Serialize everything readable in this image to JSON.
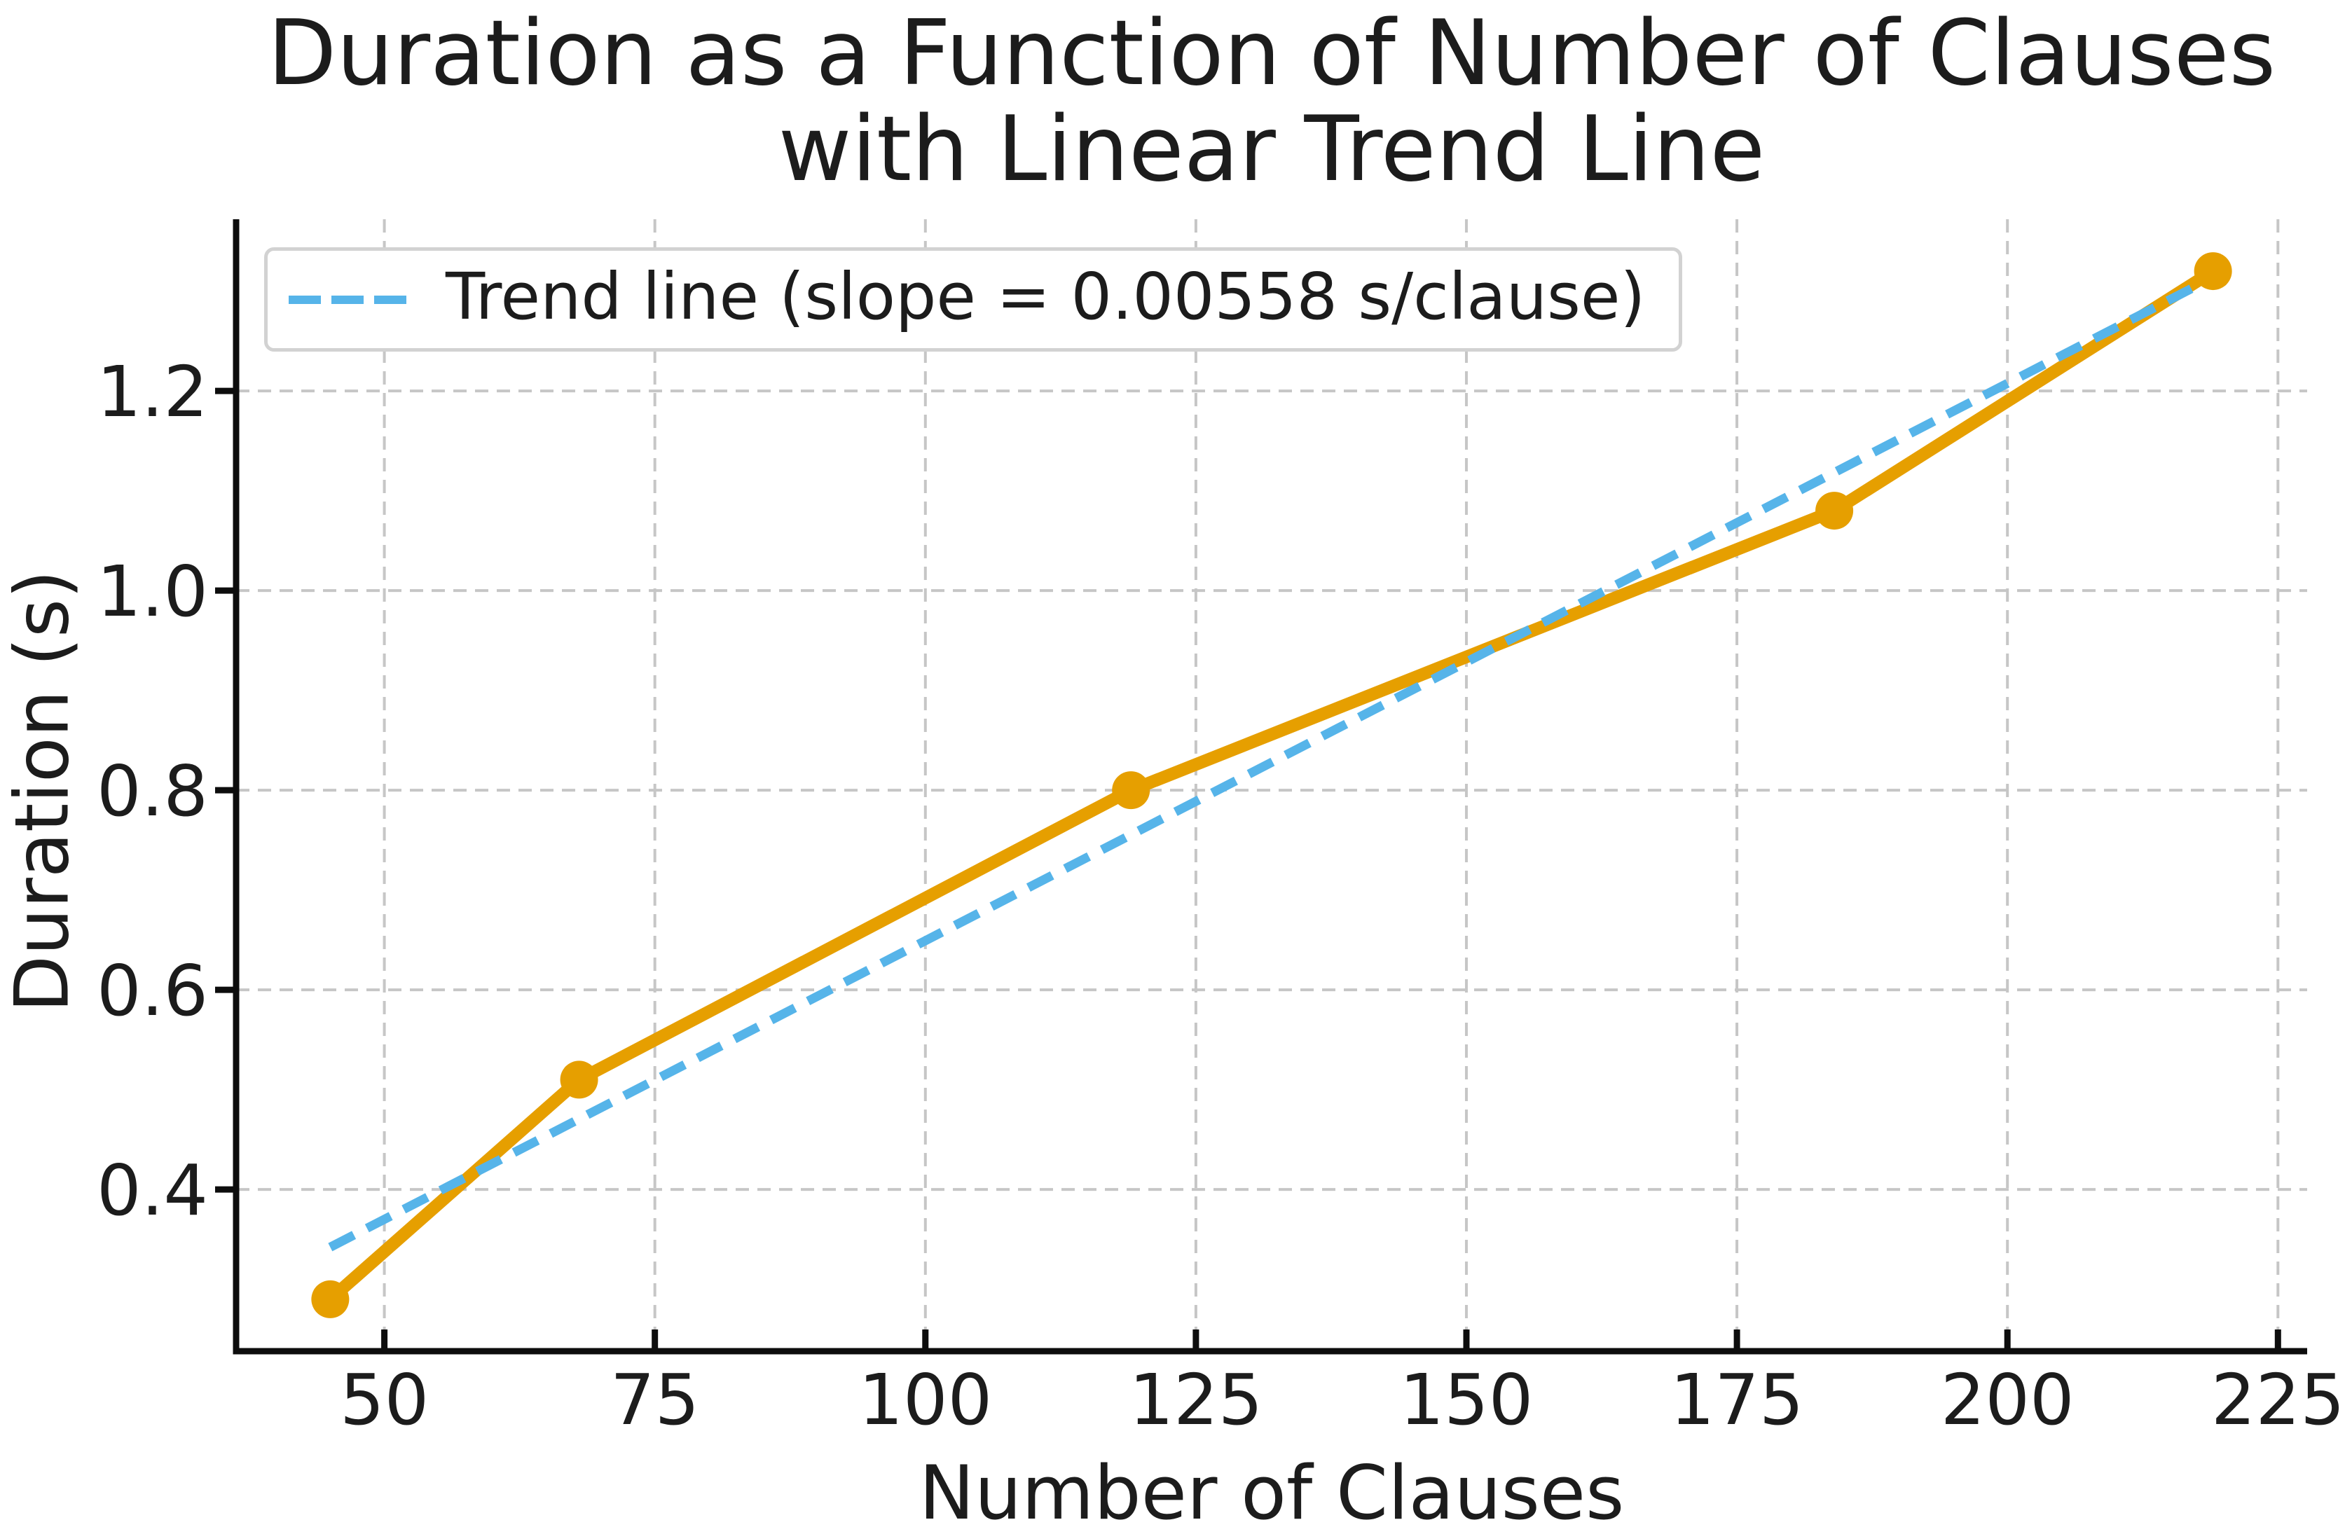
{
  "figure": {
    "background": "#ffffff"
  },
  "title": {
    "line1": "Duration as a Function of Number of Clauses",
    "line2": "with Linear Trend Line"
  },
  "axes": {
    "xlabel": "Number of Clauses",
    "ylabel": "Duration (s)"
  },
  "legend": {
    "label": "Trend line (slope = 0.00558 s/clause)",
    "position": "upper left"
  },
  "colors": {
    "data_line": "#E69F00",
    "trend_line": "#56B4E9",
    "grid": "#c6c6c6",
    "spine": "#0d0d0d",
    "text": "#1c1c1c",
    "legend_border": "#d2d2d2"
  },
  "chart_data": {
    "type": "line",
    "title": "Duration as a Function of Number of Clauses with Linear Trend Line",
    "xlabel": "Number of Clauses",
    "ylabel": "Duration (s)",
    "series": [
      {
        "name": "duration",
        "x": [
          45,
          68,
          119,
          184,
          219
        ],
        "y": [
          0.29,
          0.51,
          0.8,
          1.08,
          1.32
        ],
        "color": "#E69F00",
        "marker": "circle",
        "style": "solid"
      },
      {
        "name": "trend",
        "fit": "least-squares",
        "slope_label": "0.00558 s/clause",
        "color": "#56B4E9",
        "style": "dashed"
      }
    ],
    "x_ticks": [
      50,
      75,
      100,
      125,
      150,
      175,
      200,
      225
    ],
    "y_ticks": [
      0.4,
      0.6,
      0.8,
      1.0,
      1.2
    ],
    "xlim": [
      36.3,
      227.7
    ],
    "ylim": [
      0.238,
      1.372
    ],
    "grid": true,
    "grid_style": "dashed",
    "legend_position": "upper left"
  }
}
